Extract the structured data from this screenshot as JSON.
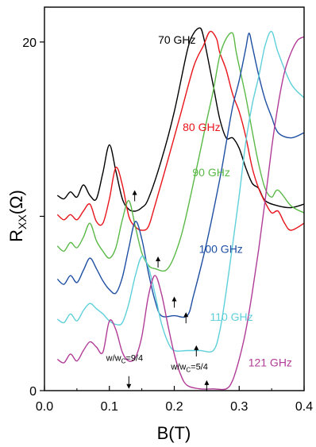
{
  "chart_data": {
    "type": "line",
    "title": "",
    "xlabel": "B(T)",
    "ylabel": "R_XX(Ω)",
    "xlim": [
      0.0,
      0.4
    ],
    "ylim": [
      0,
      22
    ],
    "x_ticks": [
      {
        "value": 0.0,
        "label": "0.0"
      },
      {
        "value": 0.1,
        "label": "0.1"
      },
      {
        "value": 0.2,
        "label": "0.2"
      },
      {
        "value": 0.3,
        "label": "0.3"
      },
      {
        "value": 0.4,
        "label": "0.4"
      }
    ],
    "y_ticks": [
      {
        "value": 0,
        "label": "0"
      },
      {
        "value": 10,
        "label": ""
      },
      {
        "value": 20,
        "label": "20"
      }
    ],
    "grid": false,
    "legend": "inline labels",
    "series": [
      {
        "name": "70 GHz",
        "color": "#000000",
        "points": [
          [
            0.02,
            11.2
          ],
          [
            0.03,
            11.0
          ],
          [
            0.04,
            11.4
          ],
          [
            0.05,
            11.1
          ],
          [
            0.06,
            11.8
          ],
          [
            0.07,
            11.2
          ],
          [
            0.08,
            11.0
          ],
          [
            0.09,
            12.5
          ],
          [
            0.1,
            14.1
          ],
          [
            0.11,
            12.6
          ],
          [
            0.12,
            11.0
          ],
          [
            0.13,
            10.4
          ],
          [
            0.14,
            10.3
          ],
          [
            0.15,
            10.5
          ],
          [
            0.16,
            11.0
          ],
          [
            0.18,
            13.2
          ],
          [
            0.2,
            16.0
          ],
          [
            0.22,
            19.5
          ],
          [
            0.23,
            20.5
          ],
          [
            0.24,
            20.8
          ],
          [
            0.245,
            20.3
          ],
          [
            0.25,
            19.4
          ],
          [
            0.26,
            17.5
          ],
          [
            0.27,
            15.6
          ],
          [
            0.28,
            14.5
          ],
          [
            0.29,
            14.5
          ],
          [
            0.3,
            13.9
          ],
          [
            0.31,
            12.8
          ],
          [
            0.32,
            11.9
          ],
          [
            0.33,
            11.6
          ],
          [
            0.34,
            10.9
          ],
          [
            0.36,
            10.6
          ],
          [
            0.38,
            10.5
          ],
          [
            0.4,
            10.7
          ]
        ],
        "label_at": [
          0.175,
          19.9
        ]
      },
      {
        "name": "80 GHz",
        "color": "#e8141b",
        "points": [
          [
            0.02,
            10.1
          ],
          [
            0.03,
            9.8
          ],
          [
            0.04,
            10.1
          ],
          [
            0.05,
            9.8
          ],
          [
            0.06,
            10.3
          ],
          [
            0.07,
            10.7
          ],
          [
            0.08,
            9.7
          ],
          [
            0.09,
            9.6
          ],
          [
            0.1,
            11.0
          ],
          [
            0.11,
            12.8
          ],
          [
            0.12,
            11.8
          ],
          [
            0.13,
            10.0
          ],
          [
            0.14,
            9.4
          ],
          [
            0.15,
            9.2
          ],
          [
            0.16,
            9.4
          ],
          [
            0.17,
            10.6
          ],
          [
            0.19,
            13.2
          ],
          [
            0.21,
            15.9
          ],
          [
            0.23,
            18.6
          ],
          [
            0.245,
            19.8
          ],
          [
            0.255,
            20.6
          ],
          [
            0.265,
            20.2
          ],
          [
            0.27,
            19.4
          ],
          [
            0.28,
            18.4
          ],
          [
            0.29,
            17.0
          ],
          [
            0.3,
            16.0
          ],
          [
            0.31,
            14.6
          ],
          [
            0.32,
            12.8
          ],
          [
            0.33,
            11.6
          ],
          [
            0.34,
            10.8
          ],
          [
            0.35,
            10.2
          ],
          [
            0.36,
            10.3
          ],
          [
            0.37,
            9.6
          ],
          [
            0.38,
            9.2
          ],
          [
            0.4,
            9.6
          ]
        ],
        "label_at": [
          0.213,
          14.9
        ]
      },
      {
        "name": "90 GHz",
        "color": "#5ab947",
        "points": [
          [
            0.02,
            8.3
          ],
          [
            0.03,
            8.0
          ],
          [
            0.04,
            8.5
          ],
          [
            0.05,
            8.2
          ],
          [
            0.06,
            8.8
          ],
          [
            0.07,
            9.6
          ],
          [
            0.08,
            8.6
          ],
          [
            0.09,
            8.0
          ],
          [
            0.1,
            7.6
          ],
          [
            0.11,
            8.2
          ],
          [
            0.12,
            9.8
          ],
          [
            0.13,
            10.9
          ],
          [
            0.14,
            9.4
          ],
          [
            0.15,
            7.9
          ],
          [
            0.16,
            7.2
          ],
          [
            0.17,
            7.0
          ],
          [
            0.19,
            7.0
          ],
          [
            0.21,
            8.8
          ],
          [
            0.23,
            12.0
          ],
          [
            0.25,
            15.5
          ],
          [
            0.26,
            17.2
          ],
          [
            0.27,
            19.2
          ],
          [
            0.28,
            20.2
          ],
          [
            0.29,
            20.5
          ],
          [
            0.295,
            19.5
          ],
          [
            0.3,
            18.6
          ],
          [
            0.31,
            16.9
          ],
          [
            0.32,
            14.9
          ],
          [
            0.33,
            13.0
          ],
          [
            0.34,
            11.6
          ],
          [
            0.35,
            11.1
          ],
          [
            0.36,
            11.5
          ],
          [
            0.38,
            10.6
          ],
          [
            0.4,
            10.2
          ]
        ],
        "label_at": [
          0.228,
          12.3
        ]
      },
      {
        "name": "100 GHz",
        "color": "#1f4fa3",
        "points": [
          [
            0.02,
            6.4
          ],
          [
            0.03,
            6.1
          ],
          [
            0.04,
            6.6
          ],
          [
            0.05,
            6.2
          ],
          [
            0.06,
            6.9
          ],
          [
            0.07,
            7.6
          ],
          [
            0.08,
            7.0
          ],
          [
            0.09,
            6.3
          ],
          [
            0.1,
            5.8
          ],
          [
            0.11,
            5.6
          ],
          [
            0.12,
            6.5
          ],
          [
            0.13,
            8.2
          ],
          [
            0.14,
            9.7
          ],
          [
            0.15,
            8.7
          ],
          [
            0.16,
            6.8
          ],
          [
            0.17,
            5.2
          ],
          [
            0.18,
            4.3
          ],
          [
            0.2,
            4.3
          ],
          [
            0.22,
            4.3
          ],
          [
            0.23,
            5.5
          ],
          [
            0.25,
            8.5
          ],
          [
            0.27,
            12.1
          ],
          [
            0.28,
            14.2
          ],
          [
            0.29,
            16.3
          ],
          [
            0.3,
            17.8
          ],
          [
            0.31,
            19.6
          ],
          [
            0.315,
            20.5
          ],
          [
            0.32,
            19.8
          ],
          [
            0.33,
            18.1
          ],
          [
            0.34,
            16.7
          ],
          [
            0.35,
            15.7
          ],
          [
            0.36,
            14.8
          ],
          [
            0.38,
            14.5
          ],
          [
            0.4,
            14.8
          ]
        ],
        "label_at": [
          0.238,
          7.9
        ]
      },
      {
        "name": "110 GHz",
        "color": "#5fd0da",
        "points": [
          [
            0.02,
            4.1
          ],
          [
            0.03,
            3.9
          ],
          [
            0.04,
            4.4
          ],
          [
            0.05,
            4.0
          ],
          [
            0.06,
            4.6
          ],
          [
            0.07,
            5.0
          ],
          [
            0.08,
            4.7
          ],
          [
            0.09,
            4.4
          ],
          [
            0.1,
            4.0
          ],
          [
            0.11,
            3.8
          ],
          [
            0.12,
            3.9
          ],
          [
            0.13,
            5.0
          ],
          [
            0.14,
            6.6
          ],
          [
            0.15,
            7.7
          ],
          [
            0.16,
            7.1
          ],
          [
            0.17,
            5.6
          ],
          [
            0.18,
            3.9
          ],
          [
            0.19,
            2.8
          ],
          [
            0.2,
            2.3
          ],
          [
            0.22,
            2.3
          ],
          [
            0.24,
            2.3
          ],
          [
            0.26,
            2.3
          ],
          [
            0.27,
            3.4
          ],
          [
            0.28,
            5.7
          ],
          [
            0.29,
            8.4
          ],
          [
            0.3,
            11.2
          ],
          [
            0.31,
            14.2
          ],
          [
            0.32,
            16.4
          ],
          [
            0.33,
            18.0
          ],
          [
            0.34,
            19.8
          ],
          [
            0.35,
            20.6
          ],
          [
            0.36,
            19.4
          ],
          [
            0.38,
            17.6
          ],
          [
            0.4,
            16.8
          ]
        ],
        "label_at": [
          0.255,
          4.0
        ]
      },
      {
        "name": "121 GHz",
        "color": "#b13c97",
        "points": [
          [
            0.02,
            1.8
          ],
          [
            0.03,
            1.6
          ],
          [
            0.04,
            2.1
          ],
          [
            0.05,
            1.7
          ],
          [
            0.06,
            2.3
          ],
          [
            0.07,
            2.8
          ],
          [
            0.08,
            2.5
          ],
          [
            0.09,
            2.2
          ],
          [
            0.1,
            4.0
          ],
          [
            0.11,
            3.5
          ],
          [
            0.12,
            2.2
          ],
          [
            0.13,
            1.7
          ],
          [
            0.14,
            1.9
          ],
          [
            0.15,
            3.1
          ],
          [
            0.16,
            5.4
          ],
          [
            0.17,
            6.6
          ],
          [
            0.18,
            5.6
          ],
          [
            0.19,
            3.8
          ],
          [
            0.2,
            2.1
          ],
          [
            0.21,
            0.9
          ],
          [
            0.22,
            0.3
          ],
          [
            0.24,
            0.1
          ],
          [
            0.26,
            0.1
          ],
          [
            0.28,
            0.1
          ],
          [
            0.29,
            0.6
          ],
          [
            0.3,
            1.8
          ],
          [
            0.31,
            3.4
          ],
          [
            0.32,
            5.6
          ],
          [
            0.33,
            8.1
          ],
          [
            0.34,
            10.9
          ],
          [
            0.35,
            13.9
          ],
          [
            0.36,
            16.4
          ],
          [
            0.37,
            18.3
          ],
          [
            0.38,
            19.4
          ],
          [
            0.39,
            20.1
          ],
          [
            0.4,
            20.3
          ]
        ],
        "label_at": [
          0.314,
          1.4
        ]
      }
    ],
    "arrows": [
      {
        "x": 0.139,
        "y_tip": 11.5
      },
      {
        "x": 0.175,
        "y_tip": 7.7
      },
      {
        "x": 0.2,
        "y_tip": 5.4
      },
      {
        "x": 0.218,
        "y_tip": 4.5
      },
      {
        "x": 0.234,
        "y_tip": 2.6
      },
      {
        "x": 0.25,
        "y_tip": 0.6
      },
      {
        "x": 0.13,
        "y_tip": 0.1,
        "direction": "down"
      }
    ],
    "annotations": [
      {
        "text": "w/w",
        "sub": "C",
        "suffix": "=9/4",
        "at": [
          0.095,
          1.7
        ]
      },
      {
        "text": "w/w",
        "sub": "C",
        "suffix": "=5/4",
        "at": [
          0.195,
          1.2
        ]
      }
    ]
  }
}
